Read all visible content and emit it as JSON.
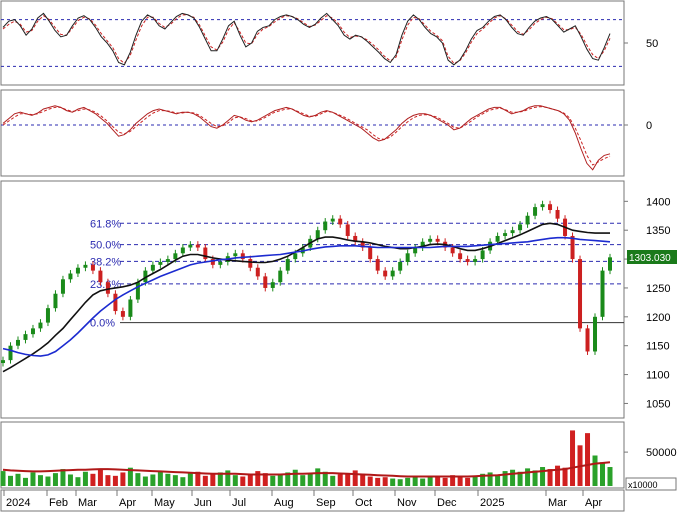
{
  "chart_data": [
    {
      "type": "line",
      "panel": "oscillator-1",
      "y_ticks": [
        "50"
      ],
      "y_tick_values": [
        50
      ],
      "ylim": [
        0,
        100
      ],
      "reference_lines": [
        80,
        20
      ],
      "series": [
        {
          "values": [
            70,
            78,
            80,
            72,
            60,
            68,
            82,
            88,
            78,
            66,
            58,
            60,
            72,
            82,
            85,
            80,
            70,
            58,
            50,
            40,
            25,
            22,
            38,
            60,
            78,
            86,
            82,
            72,
            68,
            76,
            84,
            88,
            86,
            82,
            70,
            55,
            40,
            40,
            55,
            72,
            78,
            60,
            45,
            50,
            65,
            70,
            72,
            80,
            84,
            86,
            84,
            80,
            74,
            70,
            74,
            82,
            88,
            80,
            72,
            60,
            55,
            60,
            58,
            52,
            45,
            38,
            30,
            25,
            35,
            60,
            78,
            86,
            80,
            70,
            62,
            58,
            50,
            28,
            22,
            28,
            40,
            55,
            66,
            70,
            78,
            84,
            86,
            80,
            70,
            62,
            60,
            70,
            78,
            82,
            84,
            80,
            72,
            64,
            68,
            72,
            58,
            42,
            30,
            28,
            44,
            62
          ]
        },
        {
          "values": [
            68,
            74,
            78,
            74,
            64,
            66,
            78,
            85,
            80,
            70,
            61,
            60,
            69,
            79,
            83,
            81,
            73,
            62,
            53,
            44,
            30,
            24,
            34,
            54,
            72,
            83,
            83,
            75,
            70,
            74,
            81,
            86,
            86,
            83,
            73,
            59,
            45,
            41,
            51,
            67,
            76,
            64,
            50,
            49,
            61,
            68,
            71,
            77,
            82,
            85,
            84,
            81,
            76,
            71,
            73,
            79,
            85,
            82,
            75,
            64,
            57,
            59,
            58,
            54,
            48,
            41,
            33,
            27,
            32,
            54,
            73,
            83,
            81,
            73,
            65,
            60,
            53,
            33,
            24,
            27,
            37,
            51,
            62,
            68,
            75,
            82,
            85,
            81,
            73,
            65,
            61,
            67,
            75,
            80,
            83,
            81,
            74,
            67,
            67,
            70,
            61,
            47,
            35,
            30,
            40,
            56
          ]
        }
      ]
    },
    {
      "type": "line",
      "panel": "oscillator-2",
      "y_ticks": [
        "0"
      ],
      "y_tick_values": [
        0
      ],
      "ylim": [
        -60,
        40
      ],
      "reference_lines": [
        0
      ],
      "series": [
        {
          "values": [
            2,
            8,
            14,
            16,
            14,
            12,
            15,
            20,
            22,
            24,
            22,
            18,
            16,
            20,
            22,
            18,
            14,
            8,
            2,
            -6,
            -14,
            -12,
            -6,
            2,
            8,
            14,
            18,
            20,
            18,
            16,
            14,
            16,
            16,
            14,
            10,
            4,
            -2,
            -4,
            0,
            6,
            12,
            10,
            6,
            4,
            6,
            10,
            14,
            18,
            20,
            22,
            20,
            16,
            12,
            10,
            12,
            16,
            18,
            16,
            12,
            8,
            4,
            0,
            -4,
            -10,
            -16,
            -20,
            -18,
            -12,
            -6,
            2,
            8,
            12,
            14,
            14,
            12,
            8,
            4,
            0,
            -6,
            -4,
            2,
            8,
            12,
            16,
            20,
            22,
            22,
            18,
            14,
            16,
            18,
            22,
            24,
            24,
            22,
            20,
            18,
            14,
            6,
            -10,
            -30,
            -48,
            -56,
            -44,
            -38,
            -36
          ]
        },
        {
          "values": [
            0,
            5,
            10,
            14,
            14,
            13,
            14,
            17,
            20,
            22,
            22,
            19,
            17,
            18,
            20,
            19,
            16,
            11,
            5,
            -2,
            -9,
            -11,
            -8,
            -2,
            4,
            10,
            15,
            18,
            18,
            17,
            15,
            15,
            16,
            15,
            12,
            7,
            2,
            -2,
            -1,
            3,
            9,
            10,
            8,
            5,
            5,
            8,
            12,
            16,
            18,
            20,
            20,
            17,
            14,
            11,
            11,
            14,
            17,
            16,
            13,
            10,
            6,
            2,
            -2,
            -6,
            -12,
            -17,
            -18,
            -15,
            -9,
            -2,
            4,
            9,
            12,
            13,
            12,
            10,
            6,
            2,
            -3,
            -4,
            0,
            5,
            10,
            14,
            18,
            20,
            21,
            19,
            16,
            16,
            17,
            20,
            22,
            23,
            22,
            20,
            18,
            15,
            9,
            -4,
            -20,
            -38,
            -50,
            -46,
            -42,
            -39
          ]
        }
      ]
    },
    {
      "type": "line",
      "panel": "price",
      "y_ticks": [
        "1050",
        "1100",
        "1150",
        "1200",
        "1250",
        "1300",
        "1350",
        "1400"
      ],
      "y_tick_values": [
        1050,
        1100,
        1150,
        1200,
        1250,
        1300,
        1350,
        1400
      ],
      "ylim": [
        1030,
        1430
      ],
      "last_price_label": "1303.030",
      "fibonacci_levels": [
        {
          "label": "61.8%",
          "value": 1362
        },
        {
          "label": "50.0%",
          "value": 1325
        },
        {
          "label": "38.2%",
          "value": 1296
        },
        {
          "label": "23.6%",
          "value": 1257
        },
        {
          "label": "0.0%",
          "value": 1190
        }
      ],
      "series": [
        {
          "name": "",
          "values": [
            1125,
            1150,
            1160,
            1170,
            1180,
            1190,
            1215,
            1240,
            1265,
            1275,
            1285,
            1290,
            1280,
            1260,
            1240,
            1210,
            1200,
            1230,
            1260,
            1280,
            1290,
            1295,
            1300,
            1310,
            1320,
            1325,
            1320,
            1300,
            1290,
            1295,
            1305,
            1310,
            1300,
            1285,
            1270,
            1250,
            1260,
            1280,
            1300,
            1310,
            1320,
            1335,
            1350,
            1365,
            1370,
            1360,
            1340,
            1330,
            1320,
            1300,
            1280,
            1270,
            1280,
            1295,
            1310,
            1320,
            1330,
            1335,
            1330,
            1320,
            1310,
            1300,
            1295,
            1300,
            1315,
            1330,
            1340,
            1345,
            1350,
            1360,
            1375,
            1390,
            1395,
            1385,
            1370,
            1340,
            1300,
            1180,
            1140,
            1200,
            1280,
            1303
          ]
        },
        {
          "name": "",
          "values": [
            1105,
            1112,
            1120,
            1128,
            1136,
            1145,
            1155,
            1168,
            1180,
            1195,
            1210,
            1225,
            1238,
            1245,
            1248,
            1250,
            1252,
            1255,
            1260,
            1268,
            1275,
            1282,
            1290,
            1298,
            1305,
            1308,
            1308,
            1305,
            1302,
            1300,
            1298,
            1297,
            1296,
            1295,
            1294,
            1294,
            1296,
            1300,
            1305,
            1312,
            1320,
            1328,
            1335,
            1338,
            1338,
            1336,
            1333,
            1331,
            1330,
            1328,
            1325,
            1322,
            1320,
            1318,
            1318,
            1320,
            1322,
            1325,
            1326,
            1325,
            1322,
            1318,
            1315,
            1315,
            1318,
            1322,
            1327,
            1332,
            1337,
            1342,
            1348,
            1354,
            1360,
            1362,
            1360,
            1355,
            1350,
            1348,
            1346,
            1345,
            1345,
            1345
          ]
        },
        {
          "name": "",
          "values": [
            1145,
            1142,
            1138,
            1135,
            1133,
            1132,
            1134,
            1140,
            1150,
            1160,
            1172,
            1185,
            1198,
            1210,
            1220,
            1230,
            1238,
            1245,
            1252,
            1258,
            1264,
            1270,
            1275,
            1280,
            1285,
            1290,
            1293,
            1295,
            1297,
            1299,
            1300,
            1302,
            1303,
            1304,
            1305,
            1306,
            1307,
            1308,
            1310,
            1312,
            1314,
            1317,
            1319,
            1321,
            1322,
            1323,
            1323,
            1323,
            1322,
            1321,
            1320,
            1320,
            1320,
            1320,
            1320,
            1320,
            1320,
            1320,
            1321,
            1322,
            1322,
            1322,
            1322,
            1323,
            1324,
            1325,
            1326,
            1327,
            1328,
            1329,
            1330,
            1332,
            1334,
            1336,
            1337,
            1337,
            1336,
            1334,
            1333,
            1332,
            1331,
            1330
          ]
        }
      ]
    },
    {
      "type": "bar",
      "panel": "volume",
      "y_ticks": [
        "50000"
      ],
      "y_tick_values": [
        50000
      ],
      "ylim": [
        0,
        90000
      ],
      "unit_label": "x10000",
      "series": [
        {
          "name": "",
          "values": [
            22000,
            15000,
            18000,
            12000,
            20000,
            16000,
            14000,
            19000,
            25000,
            17000,
            13000,
            21000,
            18000,
            24000,
            16000,
            15000,
            20000,
            27000,
            19000,
            14000,
            17000,
            22000,
            18000,
            16000,
            13000,
            19000,
            21000,
            15000,
            17000,
            20000,
            23000,
            16000,
            14000,
            18000,
            22000,
            19000,
            15000,
            17000,
            20000,
            24000,
            16000,
            18000,
            26000,
            21000,
            15000,
            17000,
            19000,
            23000,
            18000,
            14000,
            12000,
            13000,
            11000,
            10000,
            12000,
            14000,
            11000,
            13000,
            15000,
            12000,
            16000,
            14000,
            12000,
            15000,
            18000,
            20000,
            17000,
            22000,
            24000,
            21000,
            26000,
            23000,
            28000,
            25000,
            30000,
            27000,
            82000,
            60000,
            78000,
            45000,
            35000,
            28000
          ]
        },
        {
          "name": "",
          "values": [
            24000,
            23000,
            22500,
            22000,
            21500,
            21500,
            22000,
            22500,
            23000,
            23500,
            24000,
            24000,
            24500,
            25000,
            25000,
            24500,
            24000,
            23500,
            23000,
            22500,
            22000,
            21500,
            21000,
            20500,
            20000,
            19500,
            19000,
            18500,
            18000,
            18000,
            18000,
            18000,
            17500,
            17000,
            17000,
            17000,
            17000,
            17000,
            17500,
            18000,
            18000,
            18500,
            19000,
            19000,
            19000,
            18500,
            18000,
            17500,
            17000,
            16500,
            16000,
            15500,
            15000,
            14500,
            14000,
            14000,
            14000,
            14000,
            14000,
            14000,
            14000,
            14000,
            14000,
            14500,
            15000,
            15500,
            16000,
            17000,
            18000,
            19000,
            20000,
            21000,
            22000,
            23000,
            24000,
            25000,
            27000,
            29000,
            31000,
            33000,
            34000,
            35000
          ]
        }
      ]
    }
  ],
  "time_axis": {
    "labels": [
      "2024",
      "Feb",
      "Mar",
      "Apr",
      "May",
      "Jun",
      "Jul",
      "Aug",
      "Sep",
      "Oct",
      "Nov",
      "Dec",
      "2025",
      "Mar",
      "Apr"
    ]
  }
}
